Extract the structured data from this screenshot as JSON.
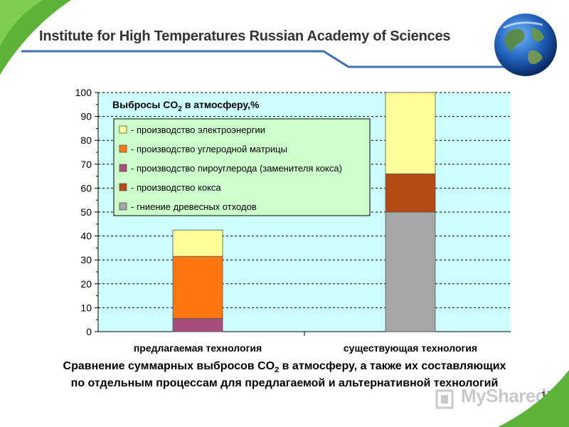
{
  "header": {
    "title": "Institute for High Temperatures Russian Academy of Sciences",
    "accent_blue": "#3e6fb3",
    "accent_green": "#5cb338"
  },
  "chart_data": {
    "type": "bar",
    "stacked": true,
    "title_prefix": "Выбросы CO",
    "title_sub": "2",
    "title_suffix": " в атмосферу,%",
    "categories": [
      "предлагаемая технология",
      "существующая технология"
    ],
    "ylim": [
      0,
      100
    ],
    "yticks": [
      0,
      10,
      20,
      30,
      40,
      50,
      60,
      70,
      80,
      90,
      100
    ],
    "grid": "horizontal dashed",
    "legend_position": "top-left inside plot",
    "background": "#ccffff",
    "series": [
      {
        "name": "- гниение древесных отходов",
        "color": "#a6a6a6",
        "values": [
          0,
          50
        ]
      },
      {
        "name": "- производство кокса",
        "color": "#b54a13",
        "values": [
          0,
          16
        ]
      },
      {
        "name": "- производство пироуглерода (заменителя кокса)",
        "color": "#a64d79",
        "values": [
          5.5,
          0
        ]
      },
      {
        "name": "- производство углеродной матрицы",
        "color": "#ff7711",
        "values": [
          26,
          0
        ]
      },
      {
        "name": "- производство электроэнергии",
        "color": "#ffff99",
        "values": [
          11,
          34
        ]
      }
    ],
    "legend_order": [
      4,
      3,
      2,
      1,
      0
    ]
  },
  "caption": {
    "line1_prefix": "Сравнение суммарных выбросов CO",
    "line1_sub": "2",
    "line1_suffix": " в атмосферу, а также их составляющих",
    "line2": "по отдельным процессам для предлагаемой и альтернативной технологий"
  },
  "slide_number": "17",
  "watermark": "MyShared"
}
